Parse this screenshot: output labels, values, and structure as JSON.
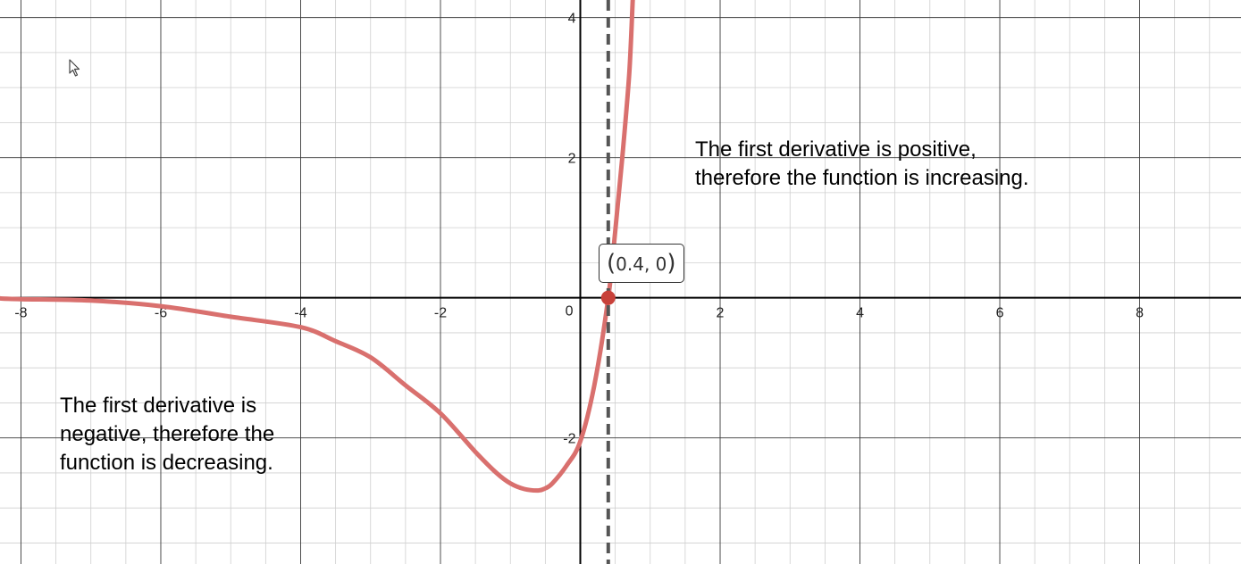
{
  "chart_data": {
    "type": "line",
    "xlim": [
      -8.3,
      9.45
    ],
    "ylim": [
      -3.8,
      4.25
    ],
    "grid": true,
    "minor_grid_step": 0.5,
    "x_tick_labels": [
      "-8",
      "-6",
      "-4",
      "-2",
      "2",
      "4",
      "6",
      "8"
    ],
    "y_tick_labels": [
      "4",
      "2",
      "-2"
    ],
    "origin_label": "0",
    "series": [
      {
        "color": "#d9706e",
        "x": [
          -8.3,
          -8,
          -7,
          -6,
          -5,
          -4,
          -3.5,
          -3,
          -2.5,
          -2,
          -1.5,
          -1.2,
          -1,
          -0.8,
          -0.6,
          -0.5,
          -0.4,
          -0.2,
          0,
          0.2,
          0.4,
          0.5,
          0.6,
          0.7,
          0.75
        ],
        "y": [
          -0.01,
          -0.02,
          -0.04,
          -0.12,
          -0.27,
          -0.42,
          -0.62,
          -0.85,
          -1.25,
          -1.65,
          -2.2,
          -2.5,
          -2.65,
          -2.73,
          -2.75,
          -2.72,
          -2.65,
          -2.4,
          -2.05,
          -1.25,
          0,
          0.95,
          2.0,
          3.2,
          4.25
        ]
      }
    ],
    "vertical_line": {
      "x": 0.4,
      "style": "dashed",
      "color": "#555555"
    },
    "point": {
      "x": 0.4,
      "y": 0,
      "color": "#c8413a"
    },
    "point_label": {
      "open": "(",
      "text": "0.4, 0",
      "close": ")"
    },
    "annotations": [
      "The first derivative is positive, therefore the function is increasing.",
      "The first derivative is negative, therefore the function is decreasing."
    ]
  }
}
